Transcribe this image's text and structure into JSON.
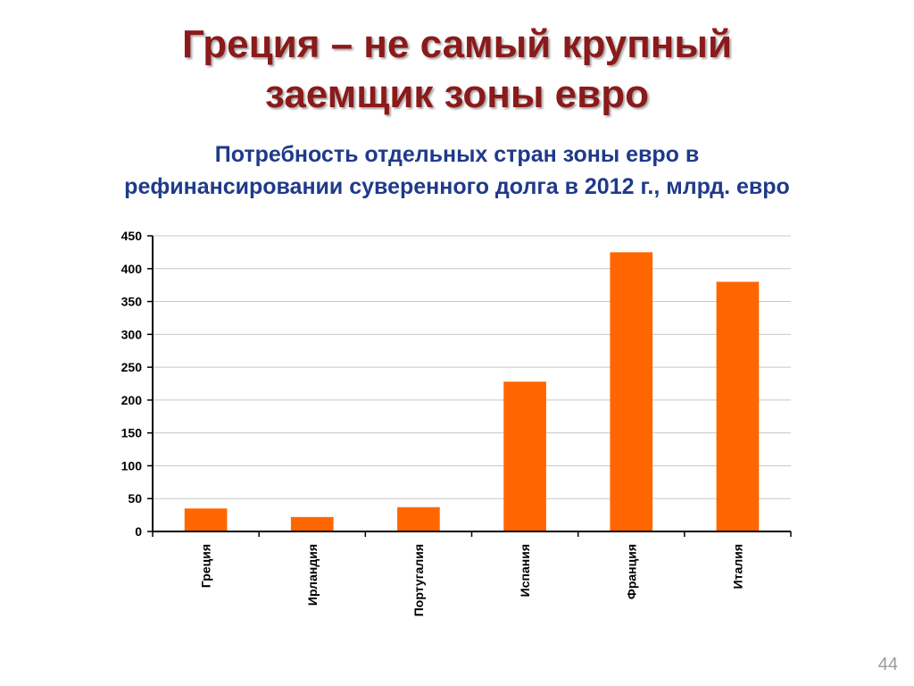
{
  "slide": {
    "title_line1": "Греция – не самый крупный",
    "title_line2": "заемщик зоны евро",
    "page_number": "44"
  },
  "chart_data": {
    "type": "bar",
    "title_line1": "Потребность отдельных стран зоны евро в",
    "title_line2": "рефинансировании суверенного долга в 2012 г., млрд. евро",
    "categories": [
      "Греция",
      "Ирландия",
      "Португалия",
      "Испания",
      "Франция",
      "Италия"
    ],
    "values": [
      35,
      22,
      37,
      228,
      425,
      380
    ],
    "ylim": [
      0,
      450
    ],
    "yticks": [
      0,
      50,
      100,
      150,
      200,
      250,
      300,
      350,
      400,
      450
    ],
    "ytick_labels": [
      "0",
      "50",
      "100",
      "150",
      "200",
      "250",
      "300",
      "350",
      "400",
      "450"
    ],
    "grid": true,
    "legend": "none",
    "bar_color": "#ff6600",
    "title_color": "#1f3a8a",
    "heading_color": "#8b1a1a"
  }
}
